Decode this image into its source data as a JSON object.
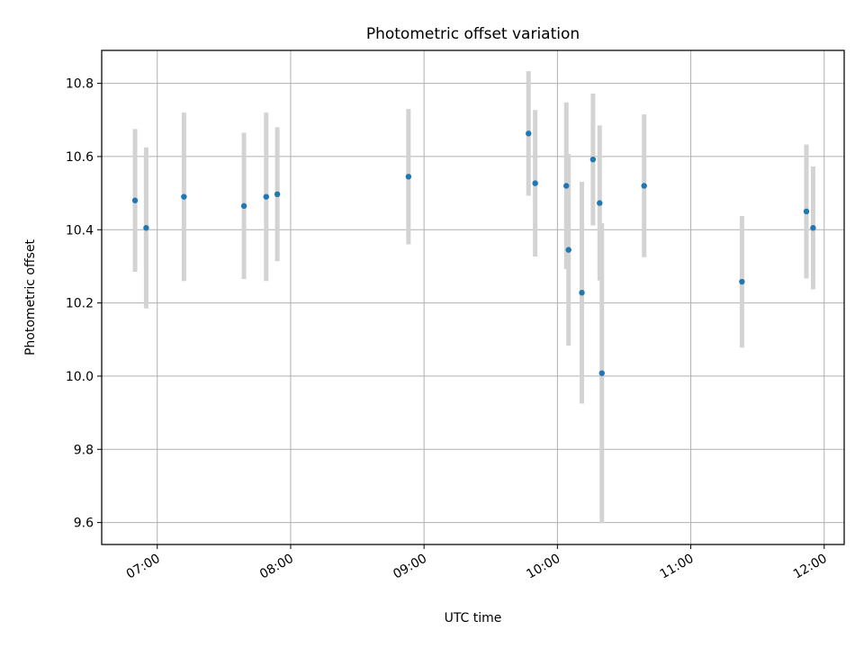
{
  "chart_data": {
    "type": "scatter",
    "title": "Photometric offset variation",
    "xlabel": "UTC time",
    "ylabel": "Photometric offset",
    "x_ticks": [
      "07:00",
      "08:00",
      "09:00",
      "10:00",
      "11:00",
      "12:00"
    ],
    "y_ticks": [
      "9.6",
      "9.8",
      "10.0",
      "10.2",
      "10.4",
      "10.6",
      "10.8"
    ],
    "xlim": [
      "06:35",
      "12:09"
    ],
    "ylim": [
      9.54,
      10.89
    ],
    "grid": true,
    "point_color": "#1f77b4",
    "errorbar_color": "#d3d3d3",
    "points": [
      {
        "time": "06:50",
        "y": 10.48,
        "err": 0.195
      },
      {
        "time": "06:55",
        "y": 10.405,
        "err": 0.22
      },
      {
        "time": "07:12",
        "y": 10.49,
        "err": 0.23
      },
      {
        "time": "07:39",
        "y": 10.465,
        "err": 0.2
      },
      {
        "time": "07:49",
        "y": 10.49,
        "err": 0.23
      },
      {
        "time": "07:54",
        "y": 10.497,
        "err": 0.183
      },
      {
        "time": "08:53",
        "y": 10.545,
        "err": 0.185
      },
      {
        "time": "09:47",
        "y": 10.663,
        "err": 0.17
      },
      {
        "time": "09:50",
        "y": 10.527,
        "err": 0.2
      },
      {
        "time": "10:04",
        "y": 10.52,
        "err": 0.228
      },
      {
        "time": "10:05",
        "y": 10.345,
        "err": 0.262
      },
      {
        "time": "10:11",
        "y": 10.228,
        "err": 0.303
      },
      {
        "time": "10:16",
        "y": 10.592,
        "err": 0.18
      },
      {
        "time": "10:19",
        "y": 10.473,
        "err": 0.212
      },
      {
        "time": "10:20",
        "y": 10.008,
        "err": 0.41
      },
      {
        "time": "10:39",
        "y": 10.52,
        "err": 0.195
      },
      {
        "time": "11:23",
        "y": 10.258,
        "err": 0.18
      },
      {
        "time": "11:52",
        "y": 10.45,
        "err": 0.183
      },
      {
        "time": "11:55",
        "y": 10.405,
        "err": 0.168
      }
    ]
  }
}
